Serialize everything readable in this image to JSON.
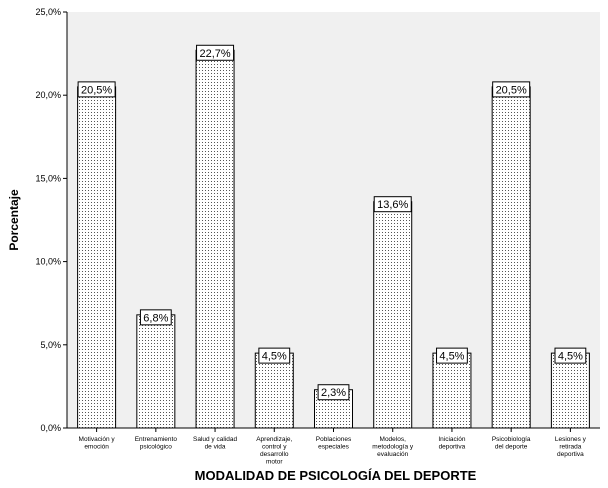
{
  "chart_data": {
    "type": "bar",
    "xlabel": "MODALIDAD DE PSICOLOGÍA DEL DEPORTE",
    "ylabel": "Porcentaje",
    "ylim": [
      0,
      25
    ],
    "yticks": [
      "0,0%",
      "5,0%",
      "10,0%",
      "15,0%",
      "20,0%",
      "25,0%"
    ],
    "ytick_values": [
      0,
      5,
      10,
      15,
      20,
      25
    ],
    "grid": false,
    "categories": [
      [
        "Motivación y",
        "emoción"
      ],
      [
        "Entrenamiento",
        "psicológico"
      ],
      [
        "Salud y calidad",
        "de vida"
      ],
      [
        "Aprendizaje,",
        "control y",
        "desarrollo",
        "motor"
      ],
      [
        "Poblaciones",
        "especiales"
      ],
      [
        "Modelos,",
        "metodología y",
        "evaluación"
      ],
      [
        "Iniciación",
        "deportiva"
      ],
      [
        "Psicobiología",
        "del deporte"
      ],
      [
        "Lesiones y",
        "retirada",
        "deportiva"
      ]
    ],
    "values": [
      20.5,
      6.8,
      22.7,
      4.5,
      2.3,
      13.6,
      4.5,
      20.5,
      4.5
    ],
    "data_labels": [
      "20,5%",
      "6,8%",
      "22,7%",
      "4,5%",
      "2,3%",
      "13,6%",
      "4,5%",
      "20,5%",
      "4,5%"
    ],
    "colors": {
      "plot_bg": "#f0f0f0",
      "bar_fill": "#ffffff",
      "bar_dots": "#555555",
      "axis": "#000000"
    }
  }
}
